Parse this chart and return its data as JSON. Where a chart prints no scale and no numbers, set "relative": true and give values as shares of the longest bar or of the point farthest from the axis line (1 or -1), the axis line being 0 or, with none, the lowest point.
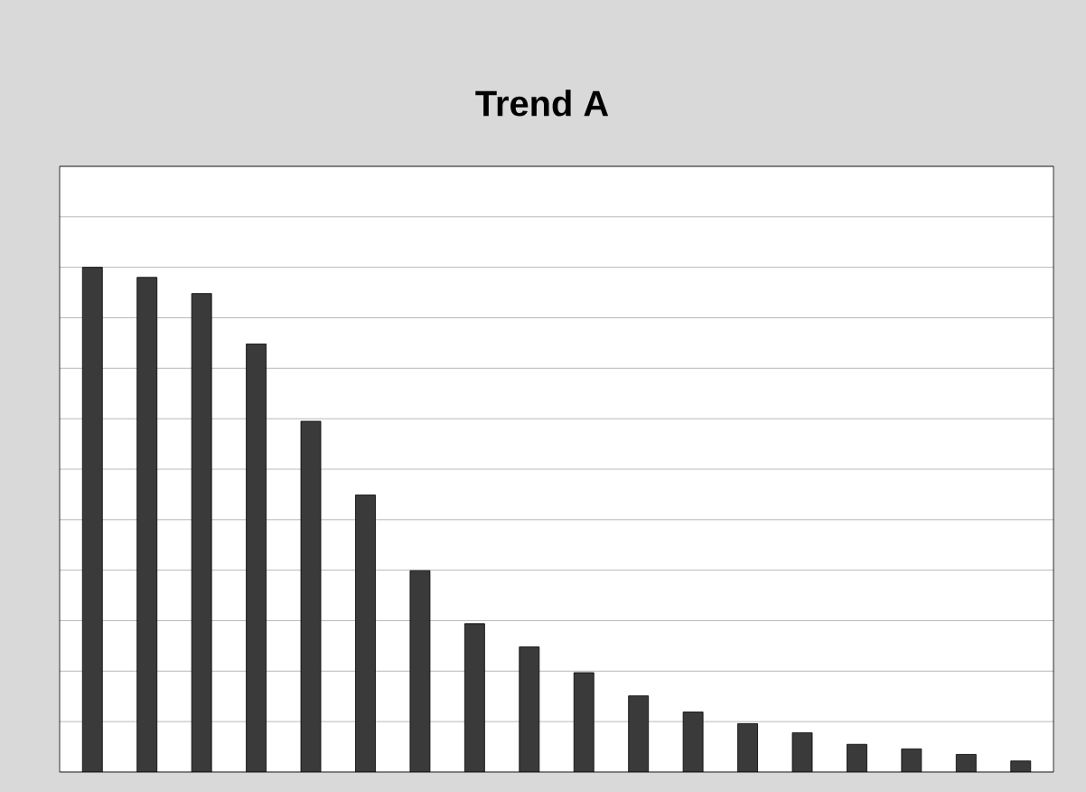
{
  "chart_data": {
    "type": "bar",
    "title": "Trend A",
    "relative": true,
    "grid": "y",
    "color": "#3a3a3a",
    "categories": [
      null,
      null,
      null,
      null,
      null,
      null,
      null,
      null,
      null,
      null,
      null,
      null,
      null,
      null,
      null,
      null,
      null,
      null
    ],
    "values": [
      1,
      0.98,
      0.948,
      0.848,
      0.695,
      0.549,
      0.399,
      0.294,
      0.248,
      0.197,
      0.151,
      0.119,
      0.096,
      0.078,
      0.055,
      0.046,
      0.035,
      0.022
    ]
  }
}
